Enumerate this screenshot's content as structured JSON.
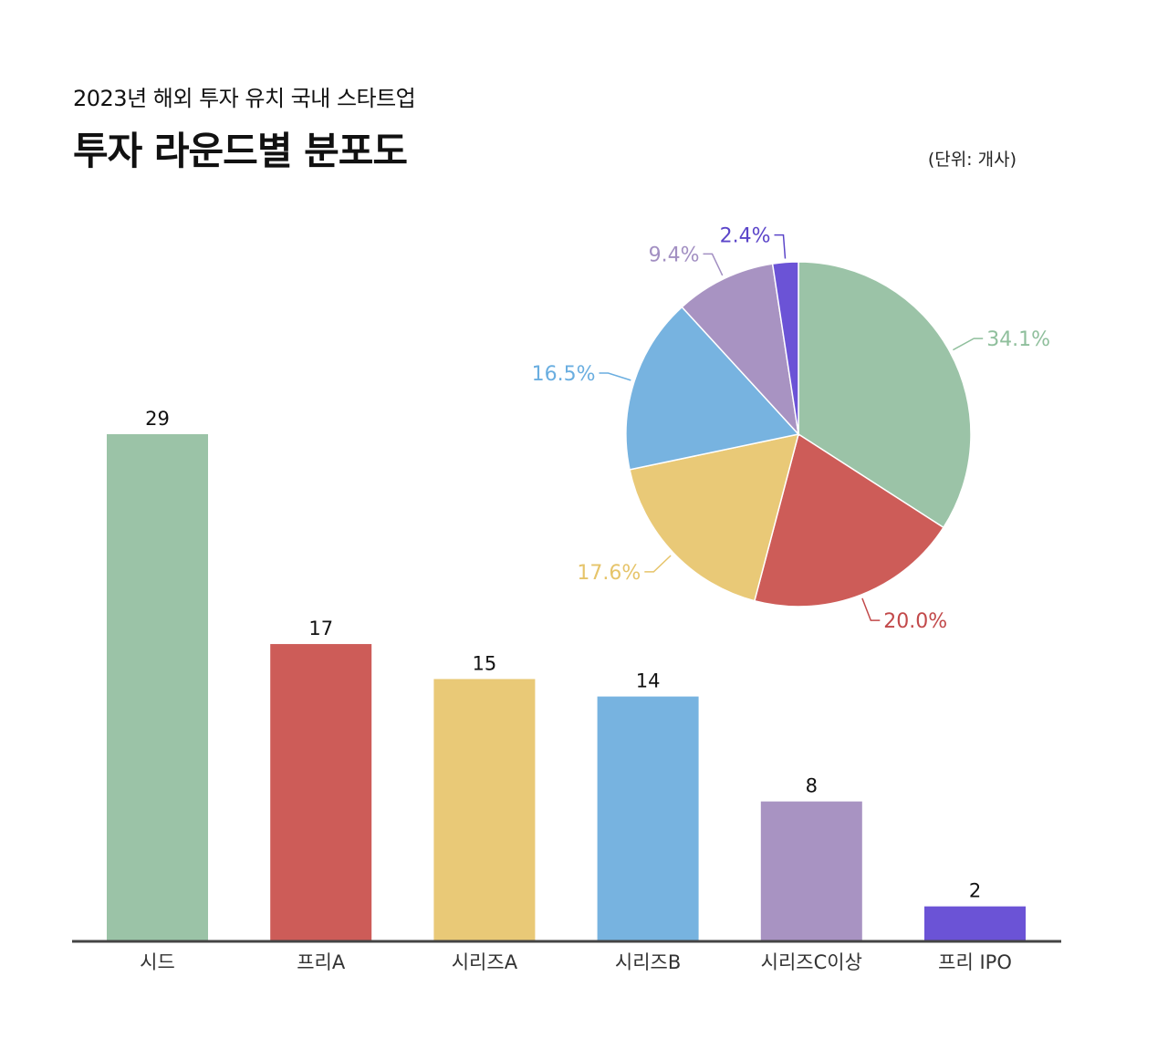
{
  "header": {
    "subtitle": "2023년 해외 투자 유치 국내 스타트업",
    "title": "투자 라운드별 분포도",
    "unit": "(단위: 개사)"
  },
  "chart_data": [
    {
      "type": "bar",
      "categories": [
        "시드",
        "프리A",
        "시리즈A",
        "시리즈B",
        "시리즈C이상",
        "프리 IPO"
      ],
      "values": [
        29,
        17,
        15,
        14,
        8,
        2
      ],
      "colors": [
        "#9bc3a7",
        "#cd5c58",
        "#e9c977",
        "#77b3e0",
        "#a893c2",
        "#6b53d6"
      ],
      "ylim": [
        0,
        29
      ]
    },
    {
      "type": "pie",
      "labels": [
        "시드",
        "프리A",
        "시리즈A",
        "시리즈B",
        "시리즈C이상",
        "프리 IPO"
      ],
      "values": [
        34.1,
        20.0,
        17.6,
        16.5,
        9.4,
        2.4
      ],
      "value_labels": [
        "34.1%",
        "20.0%",
        "17.6%",
        "16.5%",
        "9.4%",
        "2.4%"
      ],
      "colors": [
        "#9bc3a7",
        "#cd5c58",
        "#e9c977",
        "#77b3e0",
        "#a893c2",
        "#6b53d6"
      ],
      "label_colors": [
        "#8fbf9c",
        "#c2494a",
        "#e6c46a",
        "#6aaee0",
        "#a28fc2",
        "#5b45c9"
      ]
    }
  ]
}
